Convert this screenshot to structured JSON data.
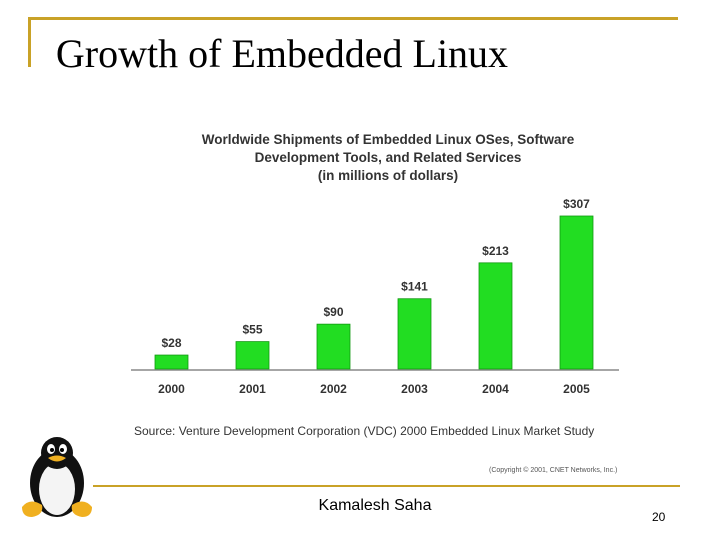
{
  "slide": {
    "title": "Growth of Embedded Linux",
    "author": "Kamalesh Saha",
    "page_number": "20"
  },
  "colors": {
    "accent": "#c9a227",
    "bar": "#22dd22",
    "bar_edge": "#119911"
  },
  "logo": "linux-penguin-tux-icon",
  "chart_data": {
    "type": "bar",
    "title_lines": [
      "Worldwide Shipments of Embedded Linux OSes, Software",
      "Development Tools, and Related Services",
      "(in millions of dollars)"
    ],
    "categories": [
      "2000",
      "2001",
      "2002",
      "2003",
      "2004",
      "2005"
    ],
    "values": [
      28,
      55,
      90,
      141,
      213,
      307
    ],
    "value_labels": [
      "$28",
      "$55",
      "$90",
      "$141",
      "$213",
      "$307"
    ],
    "ylim": [
      0,
      307
    ],
    "grid": false,
    "source": "Source:  Venture Development Corporation (VDC) 2000 Embedded Linux Market Study",
    "copyright": "(Copyright © 2001, CNET Networks, Inc.)"
  }
}
